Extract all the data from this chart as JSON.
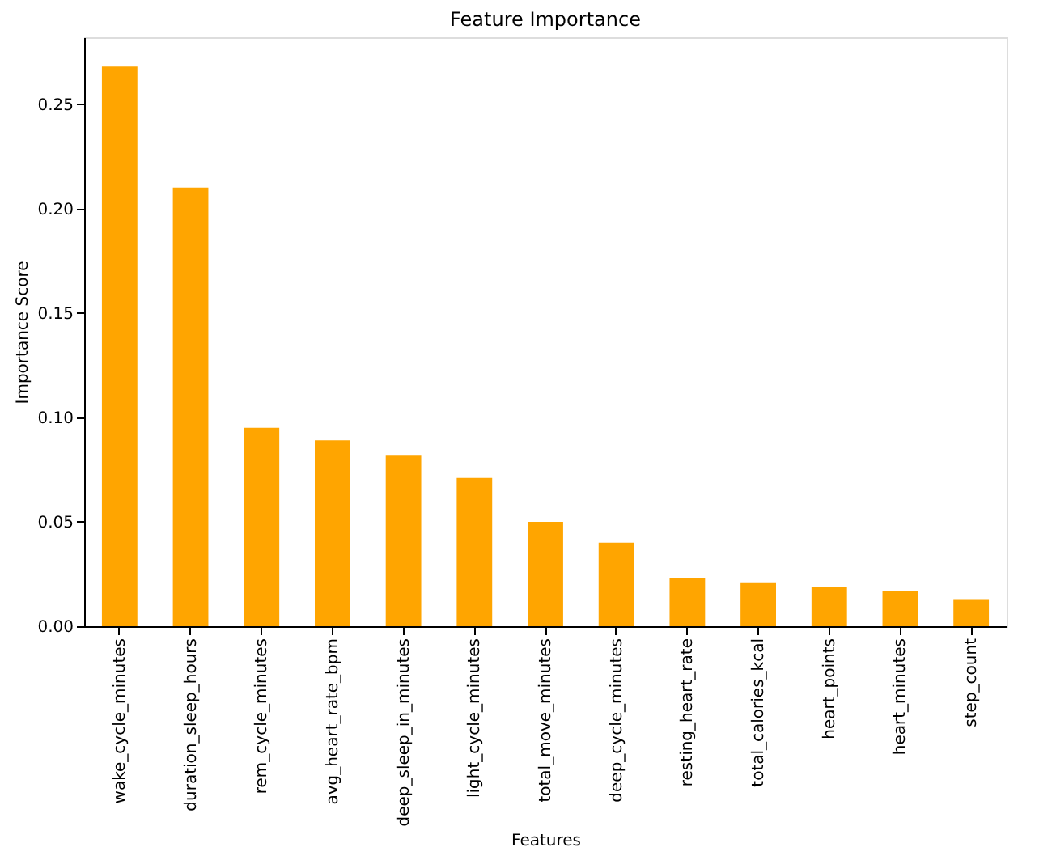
{
  "chart_data": {
    "type": "bar",
    "title": "Feature Importance",
    "xlabel": "Features",
    "ylabel": "Importance Score",
    "categories": [
      "wake_cycle_minutes",
      "duration_sleep_hours",
      "rem_cycle_minutes",
      "avg_heart_rate_bpm",
      "deep_sleep_in_minutes",
      "light_cycle_minutes",
      "total_move_minutes",
      "deep_cycle_minutes",
      "resting_heart_rate",
      "total_calories_kcal",
      "heart_points",
      "heart_minutes",
      "step_count"
    ],
    "values": [
      0.268,
      0.21,
      0.095,
      0.089,
      0.082,
      0.071,
      0.05,
      0.04,
      0.023,
      0.021,
      0.019,
      0.017,
      0.013
    ],
    "color": "#ffa500",
    "ylim": [
      0,
      0.282
    ],
    "yticks": [
      {
        "value": 0,
        "label": "0.00"
      },
      0.05,
      {
        "value": 0.1,
        "label": "0.10"
      },
      0.15,
      {
        "value": 0.2,
        "label": "0.20"
      },
      0.25
    ],
    "grid": false
  }
}
